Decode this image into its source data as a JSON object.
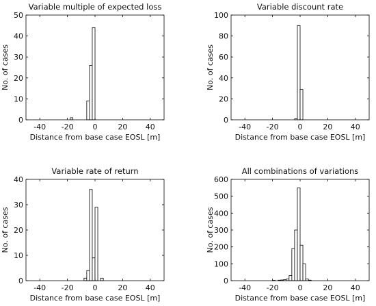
{
  "chart_data": [
    {
      "type": "bar",
      "title": "Variable multiple of expected loss",
      "xlabel": "Distance from base case EOSL [m]",
      "ylabel": "No. of cases",
      "xlim": [
        -50,
        50
      ],
      "ylim": [
        0,
        50
      ],
      "xticks": [
        -40,
        -20,
        0,
        20,
        40
      ],
      "yticks": [
        0,
        10,
        20,
        30,
        40,
        50
      ],
      "bin_width": 2,
      "bins": [
        {
          "x": -17,
          "y": 1
        },
        {
          "x": -5,
          "y": 9
        },
        {
          "x": -3,
          "y": 26
        },
        {
          "x": -1,
          "y": 44
        }
      ]
    },
    {
      "type": "bar",
      "title": "Variable discount rate",
      "xlabel": "Distance from base case EOSL [m]",
      "ylabel": "No. of cases",
      "xlim": [
        -50,
        50
      ],
      "ylim": [
        0,
        100
      ],
      "xticks": [
        -40,
        -20,
        0,
        20,
        40
      ],
      "yticks": [
        0,
        20,
        40,
        60,
        80,
        100
      ],
      "bin_width": 2,
      "bins": [
        {
          "x": -3,
          "y": 1
        },
        {
          "x": -1,
          "y": 90
        },
        {
          "x": 1,
          "y": 29
        }
      ]
    },
    {
      "type": "bar",
      "title": "Variable rate of return",
      "xlabel": "Distance from base case EOSL [m]",
      "ylabel": "No. of cases",
      "xlim": [
        -50,
        50
      ],
      "ylim": [
        0,
        40
      ],
      "xticks": [
        -40,
        -20,
        0,
        20,
        40
      ],
      "yticks": [
        0,
        10,
        20,
        30,
        40
      ],
      "bin_width": 2,
      "bins": [
        {
          "x": -7,
          "y": 1
        },
        {
          "x": -5,
          "y": 4
        },
        {
          "x": -3,
          "y": 36
        },
        {
          "x": -1,
          "y": 9
        },
        {
          "x": 1,
          "y": 29
        },
        {
          "x": 5,
          "y": 1
        }
      ]
    },
    {
      "type": "bar",
      "title": "All combinations of variations",
      "xlabel": "Distance from base case EOSL [m]",
      "ylabel": "No. of cases",
      "xlim": [
        -50,
        50
      ],
      "ylim": [
        0,
        600
      ],
      "xticks": [
        -40,
        -20,
        0,
        20,
        40
      ],
      "yticks": [
        0,
        100,
        200,
        300,
        400,
        500,
        600
      ],
      "bin_width": 2,
      "bins": [
        {
          "x": -19,
          "y": 2
        },
        {
          "x": -15,
          "y": 3
        },
        {
          "x": -13,
          "y": 4
        },
        {
          "x": -11,
          "y": 6
        },
        {
          "x": -9,
          "y": 10
        },
        {
          "x": -7,
          "y": 30
        },
        {
          "x": -5,
          "y": 190
        },
        {
          "x": -3,
          "y": 300
        },
        {
          "x": -1,
          "y": 550
        },
        {
          "x": 1,
          "y": 210
        },
        {
          "x": 3,
          "y": 100
        },
        {
          "x": 5,
          "y": 10
        },
        {
          "x": 7,
          "y": 3
        }
      ]
    }
  ]
}
